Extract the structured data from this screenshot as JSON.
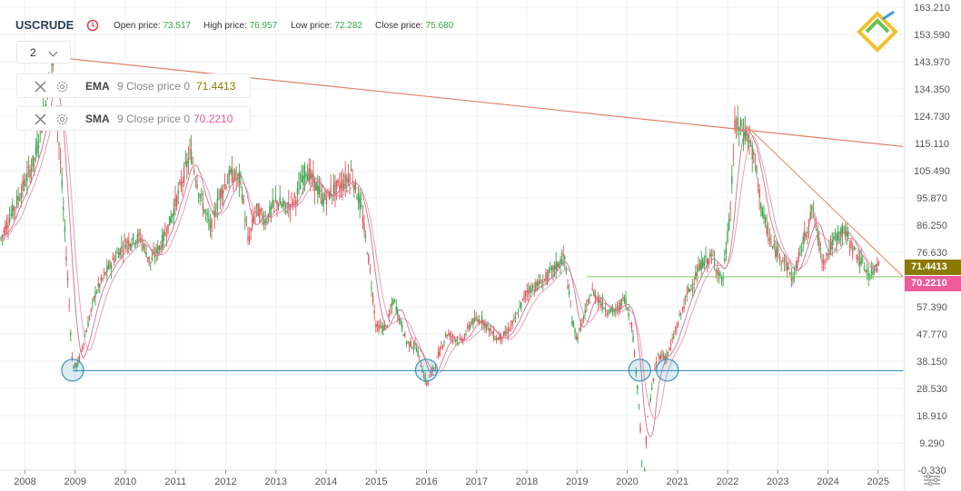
{
  "header": {
    "symbol": "USCRUDE",
    "open_label": "Open price:",
    "open_value": "73.517",
    "high_label": "High price:",
    "high_value": "76.957",
    "low_label": "Low price:",
    "low_value": "72.282",
    "close_label": "Close price:",
    "close_value": "75.680"
  },
  "zoom": {
    "value": "2"
  },
  "indicators": [
    {
      "name": "EMA",
      "params": "9 Close price 0",
      "value": "71.4413",
      "color": "#8a7a00"
    },
    {
      "name": "SMA",
      "params": "9 Close price 0",
      "value": "70.2210",
      "color": "#e0569c"
    }
  ],
  "price_flags": [
    {
      "value": "71.4413",
      "color": "#8a7a00"
    },
    {
      "value": "70.2210",
      "color": "#ef5b9c"
    }
  ],
  "icons": [
    "clock-icon",
    "close-icon",
    "gear-icon",
    "chevron-down-icon",
    "litefinance-logo-icon",
    "chart-settings-icon"
  ],
  "colors": {
    "up": "#3aa64d",
    "down": "#e0575b",
    "ma": "#c86a8a",
    "grid": "#eef0f3",
    "trend_red": "#e07f6a",
    "support": "#3f93b8",
    "neckline": "#8fce6c"
  },
  "chart_data": {
    "type": "candlestick",
    "y_axis_labels": [
      "163.210",
      "153.590",
      "143.970",
      "134.350",
      "124.730",
      "115.110",
      "105.490",
      "95.870",
      "86.250",
      "76.630",
      "67.010",
      "57.390",
      "47.770",
      "38.150",
      "28.530",
      "18.910",
      "9.290",
      "-0.330"
    ],
    "x_axis_labels": [
      "2008",
      "2009",
      "2010",
      "2011",
      "2012",
      "2013",
      "2014",
      "2015",
      "2016",
      "2017",
      "2018",
      "2019",
      "2020",
      "2021",
      "2022",
      "2023",
      "2024",
      "2025"
    ],
    "ylim": [
      -0.33,
      163.21
    ],
    "grid": true,
    "price_path": [
      [
        2007.0,
        60
      ],
      [
        2007.3,
        72
      ],
      [
        2007.6,
        85
      ],
      [
        2007.9,
        97
      ],
      [
        2008.2,
        110
      ],
      [
        2008.4,
        128
      ],
      [
        2008.55,
        145
      ],
      [
        2008.7,
        110
      ],
      [
        2008.85,
        68
      ],
      [
        2008.95,
        36
      ],
      [
        2009.05,
        37
      ],
      [
        2009.2,
        47
      ],
      [
        2009.4,
        62
      ],
      [
        2009.6,
        69
      ],
      [
        2009.8,
        75
      ],
      [
        2010.0,
        80
      ],
      [
        2010.3,
        82
      ],
      [
        2010.5,
        73
      ],
      [
        2010.7,
        79
      ],
      [
        2010.9,
        88
      ],
      [
        2011.1,
        100
      ],
      [
        2011.3,
        112
      ],
      [
        2011.5,
        96
      ],
      [
        2011.7,
        85
      ],
      [
        2011.9,
        98
      ],
      [
        2012.1,
        104
      ],
      [
        2012.3,
        102
      ],
      [
        2012.45,
        80
      ],
      [
        2012.6,
        92
      ],
      [
        2012.8,
        88
      ],
      [
        2013.0,
        95
      ],
      [
        2013.2,
        92
      ],
      [
        2013.4,
        96
      ],
      [
        2013.6,
        106
      ],
      [
        2013.8,
        100
      ],
      [
        2013.95,
        95
      ],
      [
        2014.1,
        98
      ],
      [
        2014.4,
        102
      ],
      [
        2014.5,
        105
      ],
      [
        2014.7,
        92
      ],
      [
        2014.85,
        74
      ],
      [
        2015.0,
        50
      ],
      [
        2015.2,
        50
      ],
      [
        2015.35,
        60
      ],
      [
        2015.6,
        45
      ],
      [
        2015.8,
        43
      ],
      [
        2016.0,
        30
      ],
      [
        2016.15,
        36
      ],
      [
        2016.4,
        48
      ],
      [
        2016.7,
        45
      ],
      [
        2016.9,
        52
      ],
      [
        2017.1,
        53
      ],
      [
        2017.4,
        46
      ],
      [
        2017.6,
        48
      ],
      [
        2017.8,
        54
      ],
      [
        2018.0,
        63
      ],
      [
        2018.3,
        66
      ],
      [
        2018.5,
        70
      ],
      [
        2018.75,
        75
      ],
      [
        2018.9,
        53
      ],
      [
        2019.0,
        46
      ],
      [
        2019.3,
        63
      ],
      [
        2019.6,
        56
      ],
      [
        2019.8,
        56
      ],
      [
        2019.95,
        61
      ],
      [
        2020.1,
        50
      ],
      [
        2020.25,
        20
      ],
      [
        2020.32,
        -11
      ],
      [
        2020.4,
        18
      ],
      [
        2020.6,
        40
      ],
      [
        2020.8,
        40
      ],
      [
        2020.95,
        48
      ],
      [
        2021.2,
        62
      ],
      [
        2021.5,
        73
      ],
      [
        2021.7,
        75
      ],
      [
        2021.9,
        66
      ],
      [
        2022.05,
        90
      ],
      [
        2022.15,
        122
      ],
      [
        2022.4,
        118
      ],
      [
        2022.55,
        108
      ],
      [
        2022.7,
        90
      ],
      [
        2022.9,
        78
      ],
      [
        2023.1,
        75
      ],
      [
        2023.3,
        67
      ],
      [
        2023.5,
        80
      ],
      [
        2023.7,
        92
      ],
      [
        2023.9,
        73
      ],
      [
        2024.1,
        80
      ],
      [
        2024.3,
        85
      ],
      [
        2024.5,
        78
      ],
      [
        2024.7,
        72
      ],
      [
        2024.85,
        68
      ],
      [
        2025.0,
        74
      ]
    ],
    "trendlines": [
      {
        "from": [
          2008.9,
          145
        ],
        "to": [
          2025.5,
          114
        ],
        "color": "#e07f6a"
      },
      {
        "from": [
          2022.4,
          121
        ],
        "to": [
          2025.5,
          68
        ],
        "color": "#e89a6a"
      },
      {
        "from": [
          2019.2,
          68
        ],
        "to": [
          2025.5,
          68
        ],
        "color": "#8fce6c"
      },
      {
        "from": [
          2008.95,
          34.8
        ],
        "to": [
          2025.5,
          34.8
        ],
        "color": "#3f93b8"
      }
    ],
    "support_circles": [
      [
        2008.95,
        35
      ],
      [
        2016.0,
        35
      ],
      [
        2020.25,
        35
      ],
      [
        2020.8,
        35
      ]
    ]
  }
}
